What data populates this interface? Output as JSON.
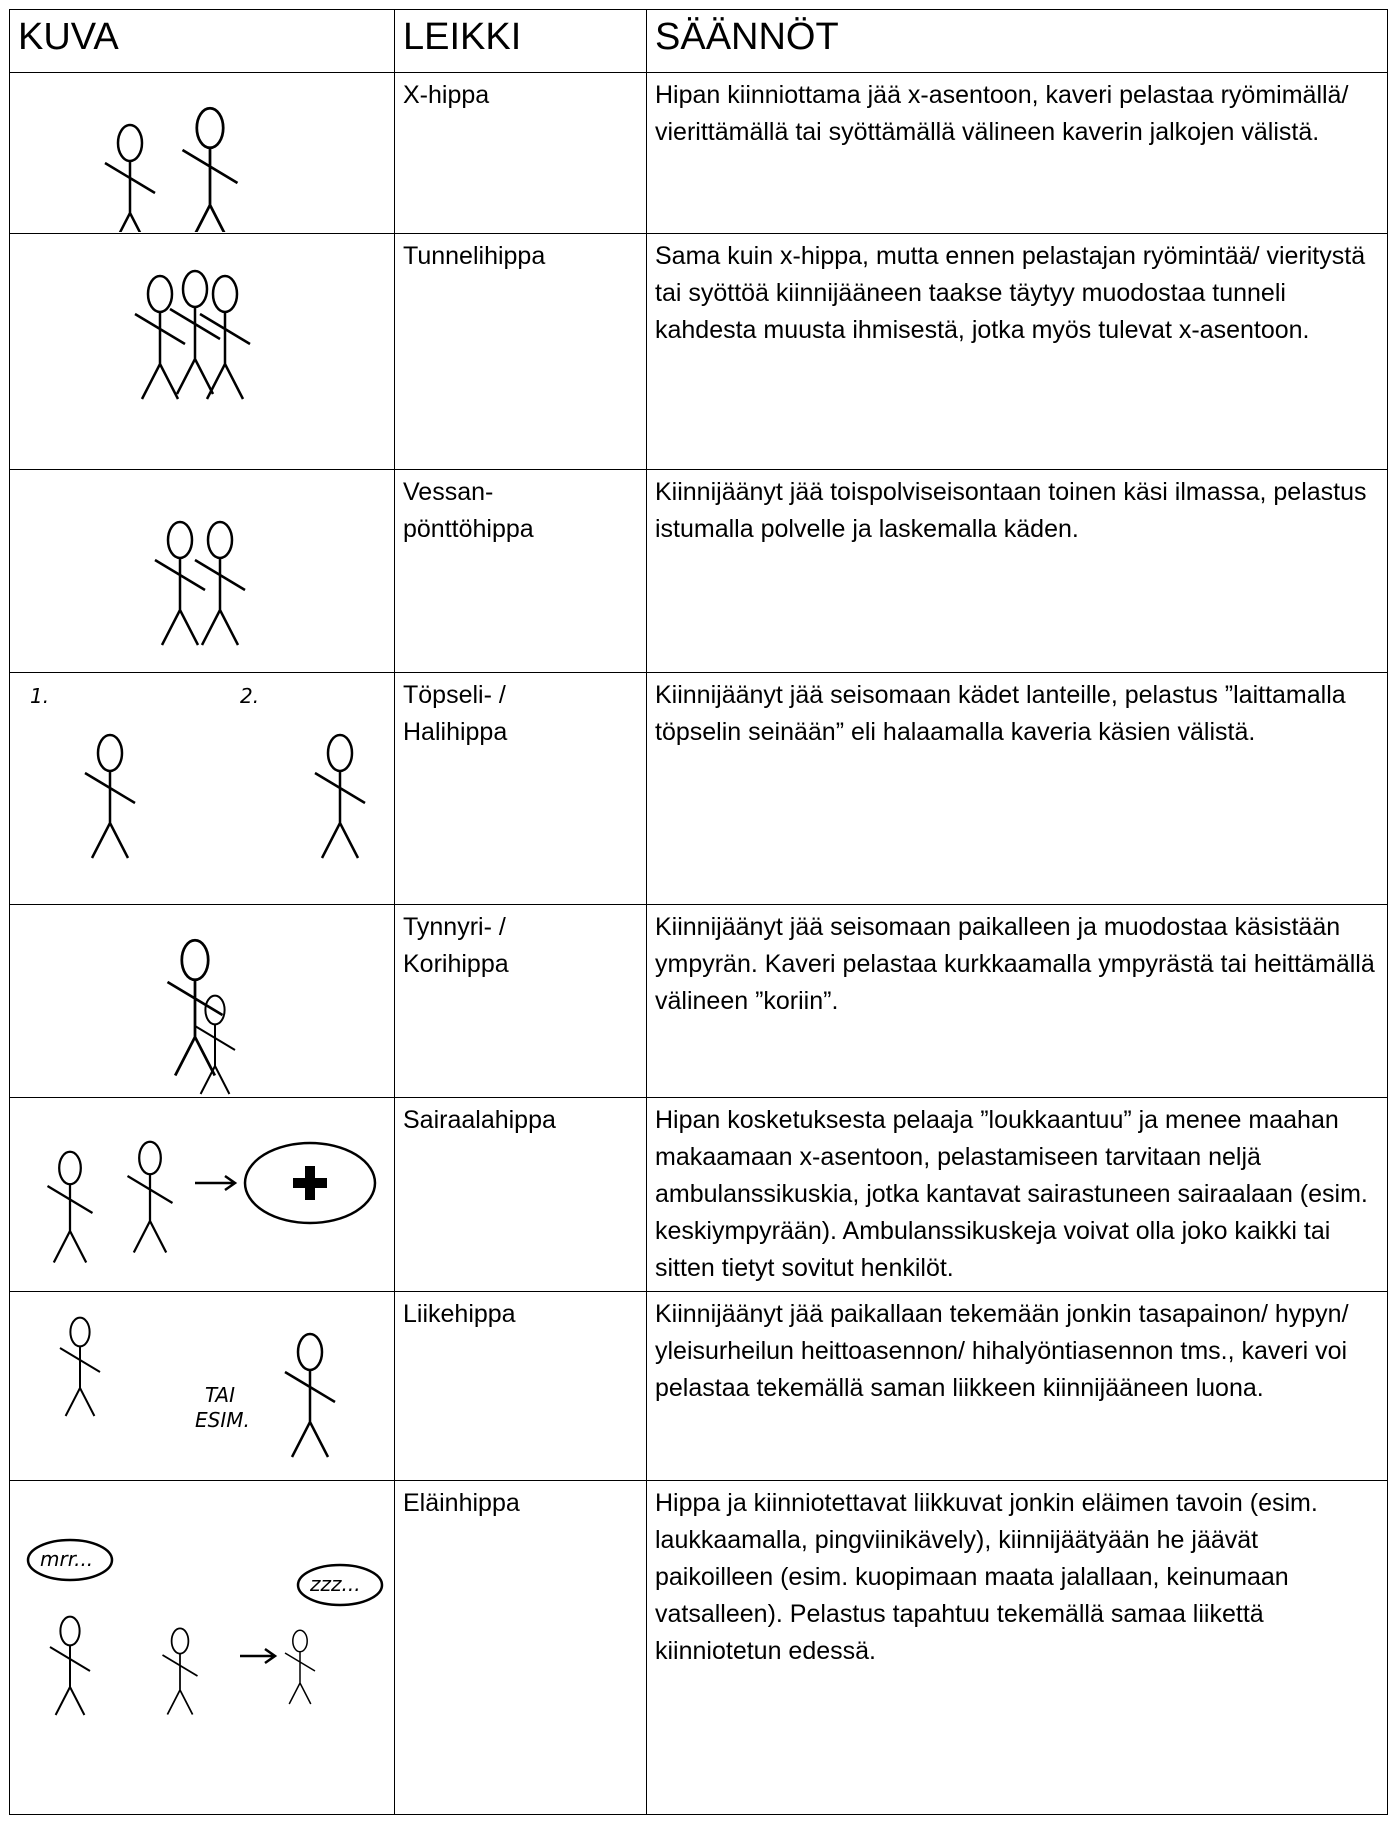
{
  "table": {
    "header": [
      "KUVA",
      "LEIKKI",
      "SÄÄNNÖT"
    ],
    "rows": [
      {
        "name": [
          "X-hippa"
        ],
        "rules": "Hipan kiinniottama jää x-asentoon, kaveri pelastaa ryömimällä/ vierittämällä tai syöttämällä välineen kaverin jalkojen välistä."
      },
      {
        "name": [
          "Tunnelihippa"
        ],
        "rules": "Sama kuin x-hippa, mutta ennen pelastajan ryömintää/ vieritystä tai syöttöä kiinnijääneen taakse täytyy muodostaa tunneli kahdesta muusta ihmisestä, jotka myös tulevat x-asentoon."
      },
      {
        "name": [
          "Vessan-",
          "pönttöhippa"
        ],
        "rules": "Kiinnijäänyt jää toispolviseisontaan toinen käsi ilmassa, pelastus istumalla polvelle ja laskemalla käden."
      },
      {
        "name": [
          "Töpseli- /",
          "Halihippa"
        ],
        "rules": "Kiinnijäänyt jää seisomaan kädet lanteille, pelastus ”laittamalla töpselin seinään” eli halaamalla kaveria käsien välistä.",
        "image_text": [
          "1.",
          "2."
        ]
      },
      {
        "name": [
          "Tynnyri- /",
          "Korihippa"
        ],
        "rules": "Kiinnijäänyt jää seisomaan paikalleen ja muodostaa käsistään ympyrän. Kaveri pelastaa kurkkaamalla ympyrästä tai heittämällä välineen ”koriin”."
      },
      {
        "name": [
          "Sairaalahippa"
        ],
        "rules": "Hipan kosketuksesta pelaaja ”loukkaantuu” ja menee maahan makaamaan x-asentoon, pelastamiseen tarvitaan neljä ambulanssikuskia, jotka kantavat sairastuneen sairaalaan (esim. keskiympyrään). Ambulanssikuskeja voivat olla joko kaikki tai sitten tietyt sovitut henkilöt."
      },
      {
        "name": [
          "Liikehippa"
        ],
        "rules": "Kiinnijäänyt jää paikallaan tekemään jonkin tasapainon/ hypyn/ yleisurheilun heittoasennon/ hihalyöntiasennon tms., kaveri voi pelastaa tekemällä saman liikkeen kiinnijääneen luona.",
        "image_text": [
          "TAI",
          "ESIM."
        ]
      },
      {
        "name": [
          "Eläinhippa"
        ],
        "rules": "Hippa ja kiinniotettavat liikkuvat jonkin eläimen tavoin (esim. laukkaamalla, pingviinikävely), kiinnijäätyään he jäävät paikoilleen (esim. kuopimaan maata jalallaan, keinumaan vatsalleen). Pelastus tapahtuu tekemällä samaa liikettä kiinniotetun edessä.",
        "image_text": [
          "mrr...",
          "zzz..."
        ]
      }
    ]
  }
}
